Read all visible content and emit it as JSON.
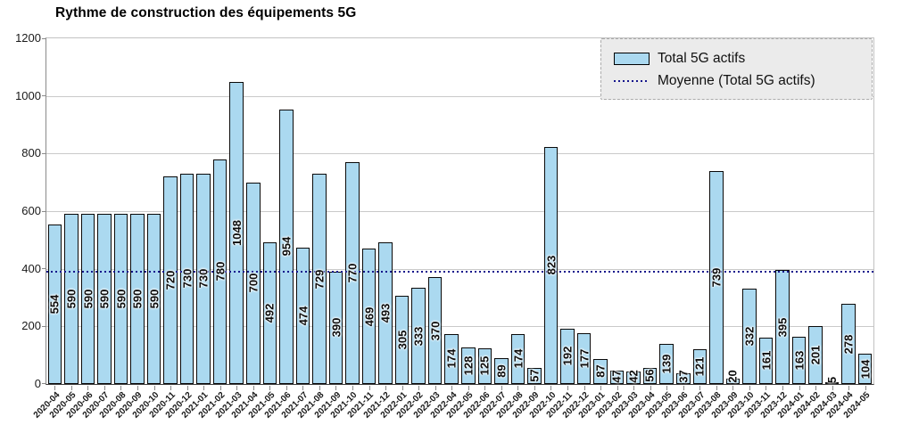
{
  "title": "Rythme de construction des équipements 5G",
  "legend": {
    "bar_label": "Total 5G actifs",
    "mean_label": "Moyenne (Total 5G actifs)"
  },
  "chart_data": {
    "type": "bar",
    "title": "Rythme de construction des équipements 5G",
    "categories": [
      "2020-04",
      "2020-05",
      "2020-06",
      "2020-07",
      "2020-08",
      "2020-09",
      "2020-10",
      "2020-11",
      "2020-12",
      "2021-01",
      "2021-02",
      "2021-03",
      "2021-04",
      "2021-05",
      "2021-06",
      "2021-07",
      "2021-08",
      "2021-09",
      "2021-10",
      "2021-11",
      "2021-12",
      "2022-01",
      "2022-02",
      "2022-03",
      "2022-04",
      "2022-05",
      "2022-06",
      "2022-07",
      "2022-08",
      "2022-09",
      "2022-10",
      "2022-11",
      "2022-12",
      "2023-01",
      "2023-02",
      "2023-03",
      "2023-04",
      "2023-05",
      "2023-06",
      "2023-07",
      "2023-08",
      "2023-09",
      "2023-10",
      "2023-11",
      "2023-12",
      "2024-01",
      "2024-02",
      "2024-03",
      "2024-04",
      "2024-05"
    ],
    "series": [
      {
        "name": "Total 5G actifs",
        "values": [
          554,
          590,
          590,
          590,
          590,
          590,
          590,
          720,
          730,
          730,
          780,
          1048,
          700,
          492,
          954,
          474,
          729,
          390,
          770,
          469,
          493,
          305,
          333,
          370,
          174,
          128,
          125,
          89,
          174,
          57,
          823,
          192,
          177,
          87,
          47,
          42,
          56,
          139,
          37,
          121,
          739,
          20,
          332,
          161,
          395,
          163,
          201,
          5,
          278,
          104
        ]
      }
    ],
    "mean_line": {
      "label": "Moyenne (Total 5G actifs)",
      "value": 388.9
    },
    "xlabel": "",
    "ylabel": "",
    "ylim": [
      0,
      1200
    ],
    "yticks": [
      0,
      200,
      400,
      600,
      800,
      1000,
      1200
    ],
    "grid": "horizontal",
    "legend_position": "top-right",
    "bar_labels_rotated": true,
    "colors": {
      "bar_fill": "#abd9f0",
      "bar_border": "#0a0a0a",
      "mean_line": "#15158c",
      "gridline": "#c9c9c9",
      "legend_bg": "#ebebeb",
      "text": "#111111"
    }
  }
}
